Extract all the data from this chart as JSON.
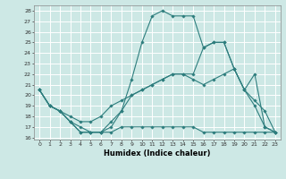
{
  "xlabel": "Humidex (Indice chaleur)",
  "bg_color": "#cde8e5",
  "grid_color": "#ffffff",
  "line_color": "#2d7d7d",
  "x_ticks": [
    0,
    1,
    2,
    3,
    4,
    5,
    6,
    7,
    8,
    9,
    10,
    11,
    12,
    13,
    14,
    15,
    16,
    17,
    18,
    19,
    20,
    21,
    22,
    23
  ],
  "y_ticks": [
    16,
    17,
    18,
    19,
    20,
    21,
    22,
    23,
    24,
    25,
    26,
    27,
    28
  ],
  "ylim": [
    15.8,
    28.5
  ],
  "xlim": [
    -0.5,
    23.5
  ],
  "series": [
    [
      20.5,
      19.0,
      18.5,
      17.5,
      16.5,
      16.5,
      16.5,
      16.5,
      17.0,
      17.0,
      17.0,
      17.0,
      17.0,
      17.0,
      17.0,
      17.0,
      16.5,
      16.5,
      16.5,
      16.5,
      16.5,
      16.5,
      16.5,
      16.5
    ],
    [
      20.5,
      19.0,
      18.5,
      18.0,
      17.5,
      17.5,
      18.0,
      19.0,
      19.5,
      20.0,
      20.5,
      21.0,
      21.5,
      22.0,
      22.0,
      21.5,
      21.0,
      21.5,
      22.0,
      22.5,
      20.5,
      19.5,
      18.5,
      16.5
    ],
    [
      20.5,
      19.0,
      18.5,
      17.5,
      17.0,
      16.5,
      16.5,
      17.5,
      18.5,
      20.0,
      20.5,
      21.0,
      21.5,
      22.0,
      22.0,
      22.0,
      24.5,
      25.0,
      25.0,
      22.5,
      20.5,
      19.0,
      17.0,
      16.5
    ],
    [
      20.5,
      19.0,
      18.5,
      17.5,
      16.5,
      16.5,
      16.5,
      17.0,
      18.5,
      21.5,
      25.0,
      27.5,
      28.0,
      27.5,
      27.5,
      27.5,
      24.5,
      25.0,
      25.0,
      22.5,
      20.5,
      22.0,
      17.0,
      16.5
    ]
  ]
}
